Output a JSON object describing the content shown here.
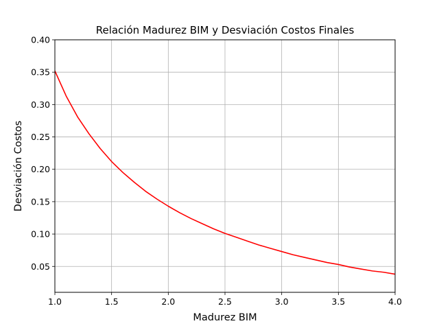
{
  "chart_data": {
    "type": "line",
    "title": "Relación Madurez BIM y Desviación Costos Finales",
    "xlabel": "Madurez BIM",
    "ylabel": "Desviación Costos",
    "xlim": [
      1.0,
      4.0
    ],
    "ylim": [
      0.01,
      0.4
    ],
    "xticks": [
      "1.0",
      "1.5",
      "2.0",
      "2.5",
      "3.0",
      "3.5",
      "4.0"
    ],
    "yticks": [
      "0.05",
      "0.10",
      "0.15",
      "0.20",
      "0.25",
      "0.30",
      "0.35",
      "0.40"
    ],
    "grid": true,
    "series": [
      {
        "color": "#ff0000",
        "x": [
          1.0,
          1.1,
          1.2,
          1.3,
          1.4,
          1.5,
          1.6,
          1.7,
          1.8,
          1.9,
          2.0,
          2.1,
          2.2,
          2.3,
          2.4,
          2.5,
          2.6,
          2.7,
          2.8,
          2.9,
          3.0,
          3.1,
          3.2,
          3.3,
          3.4,
          3.5,
          3.6,
          3.7,
          3.8,
          3.9,
          4.0
        ],
        "y": [
          0.352,
          0.313,
          0.281,
          0.255,
          0.232,
          0.212,
          0.195,
          0.18,
          0.166,
          0.154,
          0.143,
          0.133,
          0.124,
          0.116,
          0.108,
          0.101,
          0.095,
          0.089,
          0.083,
          0.078,
          0.073,
          0.068,
          0.064,
          0.06,
          0.056,
          0.053,
          0.049,
          0.046,
          0.043,
          0.041,
          0.038
        ]
      }
    ]
  }
}
